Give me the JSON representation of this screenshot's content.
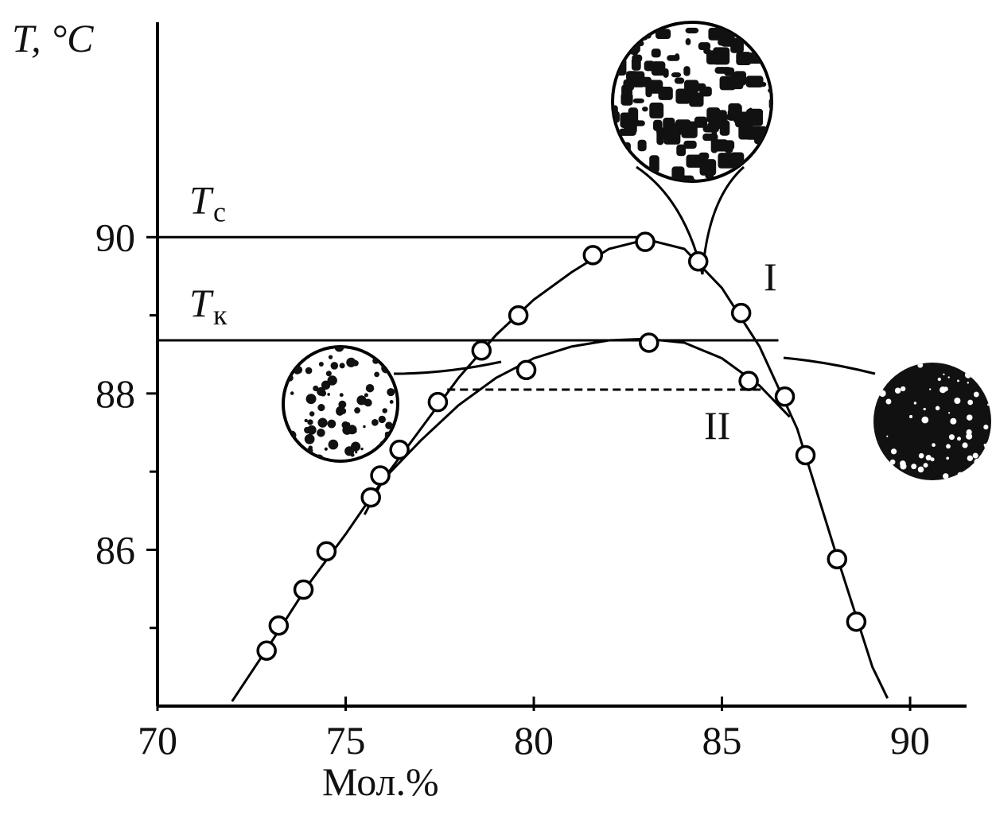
{
  "chart_data": {
    "type": "scatter",
    "x_label": "Мол.%",
    "y_label": "T, °C",
    "xlim": [
      70,
      91.5
    ],
    "ylim": [
      84,
      92.75
    ],
    "xticks": [
      70,
      75,
      80,
      85,
      90
    ],
    "yticks": [
      86,
      88,
      90
    ],
    "y_minor_ticks": [
      85,
      87,
      89
    ],
    "marker_color": "#ffffff",
    "line_color": "#000000",
    "series": [
      {
        "name": "I",
        "x": [
          72.9,
          73.22,
          73.88,
          74.49,
          75.67,
          75.92,
          78.61,
          79.59,
          81.57,
          82.96,
          84.37,
          85.51,
          86.67,
          87.22,
          88.06,
          88.57
        ],
        "values": [
          84.71,
          85.03,
          85.49,
          85.98,
          86.67,
          86.95,
          88.55,
          89.0,
          89.77,
          89.94,
          89.69,
          89.03,
          87.96,
          87.21,
          85.88,
          85.08
        ]
      },
      {
        "name": "II",
        "x": [
          76.43,
          77.45,
          79.8,
          83.06,
          85.71
        ],
        "values": [
          87.28,
          87.89,
          88.3,
          88.65,
          88.16
        ]
      }
    ],
    "curves": [
      {
        "x": [
          71.98,
          73,
          74,
          75,
          76,
          77,
          78,
          79,
          80,
          81,
          82,
          83,
          84,
          85,
          86,
          87,
          88,
          89,
          89.4
        ],
        "y": [
          84.06,
          84.8,
          85.55,
          86.2,
          86.9,
          87.55,
          88.2,
          88.75,
          89.2,
          89.55,
          89.85,
          89.97,
          89.85,
          89.35,
          88.6,
          87.55,
          86.0,
          84.5,
          84.1
        ]
      },
      {
        "x": [
          75.5,
          76,
          77,
          78,
          79,
          80,
          81,
          82,
          83,
          84,
          85,
          86,
          86.8
        ],
        "y": [
          86.45,
          86.9,
          87.4,
          87.85,
          88.2,
          88.45,
          88.6,
          88.68,
          88.7,
          88.65,
          88.45,
          88.1,
          87.7
        ]
      }
    ],
    "reference_lines": [
      {
        "label": "T",
        "subscript": "с",
        "y": 90,
        "x": [
          70,
          83
        ]
      },
      {
        "label": "T",
        "subscript": "к",
        "y": 88.68,
        "x": [
          70,
          86.5
        ]
      },
      {
        "y": 88.05,
        "x": [
          77.7,
          86.1
        ],
        "dashed": true
      }
    ]
  }
}
